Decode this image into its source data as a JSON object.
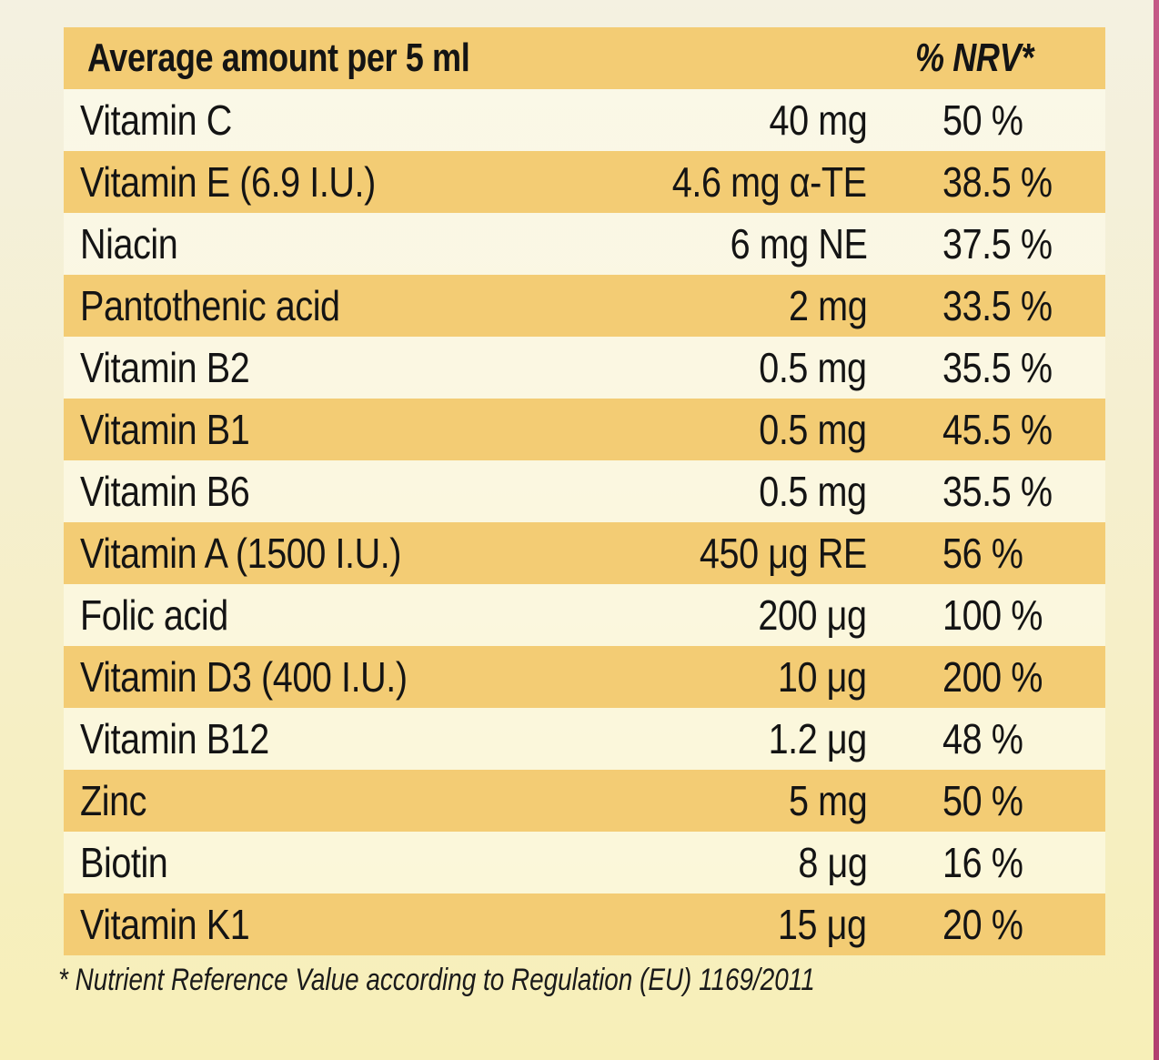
{
  "table": {
    "header": {
      "label": "Average amount per 5 ml",
      "nrv_label": "% NRV*"
    },
    "rows": [
      {
        "name": "Vitamin C",
        "amount": "40 mg",
        "nrv": "50 %"
      },
      {
        "name": "Vitamin E  (6.9 I.U.)",
        "amount": "4.6 mg α-TE",
        "nrv": "38.5 %"
      },
      {
        "name": "Niacin",
        "amount": "6 mg NE",
        "nrv": "37.5 %"
      },
      {
        "name": "Pantothenic acid",
        "amount": "2 mg",
        "nrv": "33.5 %"
      },
      {
        "name": "Vitamin B2",
        "amount": "0.5 mg",
        "nrv": "35.5 %"
      },
      {
        "name": "Vitamin B1",
        "amount": "0.5 mg",
        "nrv": "45.5 %"
      },
      {
        "name": "Vitamin B6",
        "amount": "0.5 mg",
        "nrv": "35.5 %"
      },
      {
        "name": "Vitamin A (1500 I.U.)",
        "amount": "450 μg RE",
        "nrv": "56 %"
      },
      {
        "name": "Folic acid",
        "amount": "200 μg",
        "nrv": "100 %"
      },
      {
        "name": "Vitamin D3 (400 I.U.)",
        "amount": "10 μg",
        "nrv": "200 %"
      },
      {
        "name": "Vitamin B12",
        "amount": "1.2 μg",
        "nrv": "48 %"
      },
      {
        "name": "Zinc",
        "amount": "5 mg",
        "nrv": "50 %"
      },
      {
        "name": "Biotin",
        "amount": "8 μg",
        "nrv": "16 %"
      },
      {
        "name": "Vitamin K1",
        "amount": "15 μg",
        "nrv": "20 %"
      }
    ]
  },
  "footnote": "* Nutrient Reference Value according to Regulation (EU) 1169/2011",
  "colors": {
    "stripe": "#f3cc74",
    "background": "#f5efd0",
    "text": "#141414"
  }
}
